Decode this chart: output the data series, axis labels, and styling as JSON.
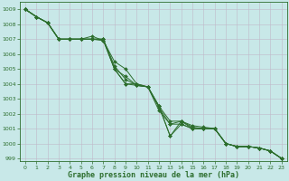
{
  "title": "Graphe pression niveau de la mer (hPa)",
  "bg_color": "#c8e8e8",
  "grid_color": "#c0b8c8",
  "line_color": "#2d6e2d",
  "xlim": [
    -0.5,
    23.5
  ],
  "ylim": [
    998.8,
    1009.5
  ],
  "yticks": [
    999,
    1000,
    1001,
    1002,
    1003,
    1004,
    1005,
    1006,
    1007,
    1008,
    1009
  ],
  "xticks": [
    0,
    1,
    2,
    3,
    4,
    5,
    6,
    7,
    8,
    9,
    10,
    11,
    12,
    13,
    14,
    15,
    16,
    17,
    18,
    19,
    20,
    21,
    22,
    23
  ],
  "series": [
    [
      1009.0,
      1008.5,
      1008.1,
      1007.0,
      1007.0,
      1007.0,
      1007.0,
      1006.9,
      1005.5,
      1005.0,
      1004.0,
      1003.8,
      1002.5,
      1001.5,
      1001.5,
      1001.2,
      1001.1,
      1001.0,
      1000.0,
      999.8,
      999.8,
      999.7,
      999.5,
      999.0
    ],
    [
      1009.0,
      1008.5,
      1008.1,
      1007.0,
      1007.0,
      1007.0,
      1007.0,
      1007.0,
      1005.0,
      1004.5,
      1003.9,
      1003.8,
      1002.2,
      1001.3,
      1001.5,
      1001.1,
      1001.0,
      1001.0,
      1000.0,
      999.8,
      999.8,
      999.7,
      999.5,
      999.0
    ],
    [
      1009.0,
      1008.5,
      1008.1,
      1007.0,
      1007.0,
      1007.0,
      1007.0,
      1007.0,
      1005.2,
      1004.3,
      1003.9,
      1003.8,
      1002.5,
      1000.5,
      1001.3,
      1001.0,
      1001.0,
      1001.0,
      1000.0,
      999.8,
      999.8,
      999.7,
      999.5,
      999.0
    ],
    [
      1009.0,
      1008.5,
      1008.1,
      1007.0,
      1007.0,
      1007.0,
      1007.2,
      1006.9,
      1005.0,
      1004.0,
      1003.9,
      1003.8,
      1002.5,
      1000.5,
      1001.5,
      1001.0,
      1001.0,
      1001.0,
      1000.0,
      999.8,
      999.8,
      999.7,
      999.5,
      999.0
    ],
    [
      1009.0,
      1008.5,
      1008.1,
      1007.0,
      1007.0,
      1007.0,
      1007.0,
      1007.0,
      1005.0,
      1004.0,
      1004.0,
      1003.8,
      1002.4,
      1001.3,
      1001.3,
      1001.0,
      1001.0,
      1001.0,
      1000.0,
      999.8,
      999.8,
      999.7,
      999.5,
      999.0
    ]
  ],
  "ylabel_fontsize": 5,
  "xlabel_fontsize": 6,
  "tick_fontsize": 4.5,
  "linewidth": 0.7,
  "markersize": 2.0
}
